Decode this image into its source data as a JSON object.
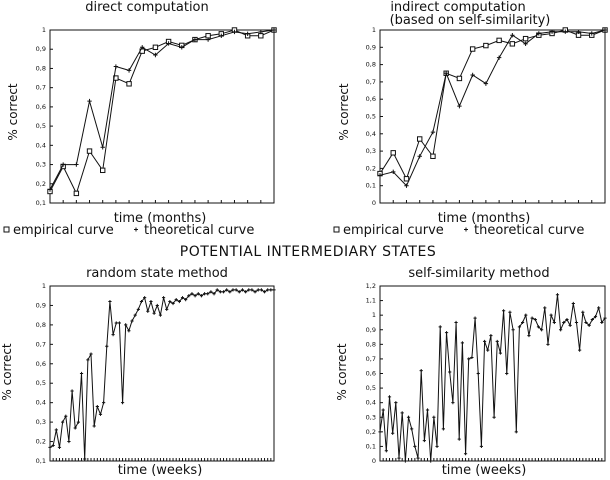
{
  "figure": {
    "heading": "POTENTIAL INTERMEDIARY STATES",
    "legend_left": {
      "empirical": "empirical curve",
      "theoretical": "theoretical curve"
    },
    "legend_right": {
      "empirical": "empirical curve",
      "theoretical": "theoretical curve"
    }
  },
  "chart_data": [
    {
      "type": "line",
      "title": "direct computation",
      "xlabel": "time (months)",
      "ylabel": "% correct",
      "ylim": [
        0.1,
        1.0
      ],
      "yticks": [
        "0,1",
        "0,2",
        "0,3",
        "0,4",
        "0,5",
        "0,6",
        "0,7",
        "0,8",
        "0,9",
        "1"
      ],
      "grid": false,
      "x": [
        1,
        2,
        3,
        4,
        5,
        6,
        7,
        8,
        9,
        10,
        11,
        12,
        13,
        14,
        15,
        16,
        17,
        18
      ],
      "series": [
        {
          "name": "empirical curve",
          "marker": "square",
          "values": [
            0.16,
            0.29,
            0.15,
            0.37,
            0.27,
            0.75,
            0.72,
            0.89,
            0.91,
            0.94,
            0.92,
            0.95,
            0.97,
            0.98,
            1.0,
            0.97,
            0.97,
            1.0
          ]
        },
        {
          "name": "theoretical curve",
          "marker": "plus",
          "values": [
            0.17,
            0.3,
            0.3,
            0.63,
            0.39,
            0.81,
            0.79,
            0.91,
            0.87,
            0.93,
            0.91,
            0.95,
            0.95,
            0.97,
            0.99,
            0.98,
            0.99,
            1.0
          ]
        }
      ]
    },
    {
      "type": "line",
      "title": "indirect computation",
      "subtitle": "(based on self-similarity)",
      "xlabel": "time (months)",
      "ylabel": "% correct",
      "ylim": [
        0.0,
        1.0
      ],
      "yticks": [
        "0",
        "0,1",
        "0,2",
        "0,3",
        "0,4",
        "0,5",
        "0,6",
        "0,7",
        "0,8",
        "0,9",
        "1"
      ],
      "grid": false,
      "x": [
        1,
        2,
        3,
        4,
        5,
        6,
        7,
        8,
        9,
        10,
        11,
        12,
        13,
        14,
        15,
        16,
        17,
        18
      ],
      "series": [
        {
          "name": "empirical curve",
          "marker": "square",
          "values": [
            0.17,
            0.29,
            0.14,
            0.37,
            0.27,
            0.75,
            0.72,
            0.89,
            0.91,
            0.94,
            0.92,
            0.95,
            0.97,
            0.98,
            1.0,
            0.97,
            0.97,
            1.0
          ]
        },
        {
          "name": "theoretical curve",
          "marker": "plus",
          "values": [
            0.16,
            0.18,
            0.1,
            0.27,
            0.41,
            0.75,
            0.56,
            0.74,
            0.69,
            0.84,
            0.97,
            0.92,
            0.98,
            0.99,
            0.99,
            0.99,
            0.98,
            1.0
          ]
        }
      ]
    },
    {
      "type": "line",
      "title": "random state method",
      "xlabel": "time (weeks)",
      "ylabel": "% correct",
      "ylim": [
        0.1,
        1.0
      ],
      "yticks": [
        "0,1",
        "0,2",
        "0,3",
        "0,4",
        "0,5",
        "0,6",
        "0,7",
        "0,8",
        "0,9",
        "1"
      ],
      "grid": false,
      "x": [
        1,
        2,
        3,
        4,
        5,
        6,
        7,
        8,
        9,
        10,
        11,
        12,
        13,
        14,
        15,
        16,
        17,
        18,
        19,
        20,
        21,
        22,
        23,
        24,
        25,
        26,
        27,
        28,
        29,
        30,
        31,
        32,
        33,
        34,
        35,
        36,
        37,
        38,
        39,
        40,
        41,
        42,
        43,
        44,
        45,
        46,
        47,
        48,
        49,
        50,
        51,
        52,
        53,
        54,
        55,
        56,
        57,
        58,
        59,
        60,
        61,
        62,
        63,
        64,
        65,
        66,
        67,
        68,
        69,
        70,
        71,
        72
      ],
      "series": [
        {
          "name": "",
          "marker": "plus",
          "values": [
            0.17,
            0.18,
            0.26,
            0.17,
            0.3,
            0.33,
            0.2,
            0.46,
            0.27,
            0.3,
            0.55,
            0.11,
            0.62,
            0.65,
            0.28,
            0.38,
            0.34,
            0.4,
            0.69,
            0.92,
            0.75,
            0.81,
            0.81,
            0.4,
            0.8,
            0.77,
            0.82,
            0.85,
            0.88,
            0.92,
            0.94,
            0.87,
            0.92,
            0.86,
            0.9,
            0.85,
            0.94,
            0.88,
            0.92,
            0.91,
            0.93,
            0.92,
            0.94,
            0.93,
            0.95,
            0.96,
            0.95,
            0.96,
            0.95,
            0.96,
            0.96,
            0.97,
            0.96,
            0.98,
            0.97,
            0.97,
            0.98,
            0.97,
            0.98,
            0.98,
            0.97,
            0.98,
            0.97,
            0.98,
            0.98,
            0.97,
            0.98,
            0.98,
            0.97,
            0.98,
            0.98,
            0.98
          ]
        }
      ]
    },
    {
      "type": "line",
      "title": "self-similarity method",
      "xlabel": "time (weeks)",
      "ylabel": "% correct",
      "ylim": [
        0.0,
        1.2
      ],
      "yticks": [
        "0",
        "0,1",
        "0,2",
        "0,3",
        "0,4",
        "0,5",
        "0,6",
        "0,7",
        "0,8",
        "0,9",
        "1",
        "1,1",
        "1,2"
      ],
      "grid": false,
      "x": [
        1,
        2,
        3,
        4,
        5,
        6,
        7,
        8,
        9,
        10,
        11,
        12,
        13,
        14,
        15,
        16,
        17,
        18,
        19,
        20,
        21,
        22,
        23,
        24,
        25,
        26,
        27,
        28,
        29,
        30,
        31,
        32,
        33,
        34,
        35,
        36,
        37,
        38,
        39,
        40,
        41,
        42,
        43,
        44,
        45,
        46,
        47,
        48,
        49,
        50,
        51,
        52,
        53,
        54,
        55,
        56,
        57,
        58,
        59,
        60,
        61,
        62,
        63,
        64,
        65,
        66,
        67,
        68,
        69,
        70,
        71,
        72
      ],
      "series": [
        {
          "name": "",
          "marker": "plus",
          "values": [
            0.2,
            0.35,
            0.07,
            0.44,
            0.19,
            0.4,
            0.02,
            0.33,
            0.0,
            0.3,
            0.22,
            0.1,
            0.02,
            0.62,
            0.14,
            0.35,
            0.0,
            0.3,
            0.1,
            0.92,
            0.22,
            0.88,
            0.61,
            0.4,
            0.95,
            0.15,
            0.81,
            0.05,
            0.7,
            0.71,
            0.98,
            0.6,
            0.1,
            0.82,
            0.76,
            0.86,
            0.3,
            0.82,
            0.74,
            1.03,
            0.6,
            1.02,
            0.9,
            0.2,
            0.92,
            0.95,
            1.0,
            0.86,
            0.98,
            0.97,
            0.92,
            0.9,
            1.05,
            0.8,
            1.0,
            0.95,
            1.14,
            0.9,
            0.95,
            0.97,
            0.93,
            1.08,
            0.95,
            0.76,
            1.02,
            0.95,
            0.93,
            0.97,
            0.99,
            1.05,
            0.95,
            0.98
          ]
        }
      ]
    }
  ]
}
